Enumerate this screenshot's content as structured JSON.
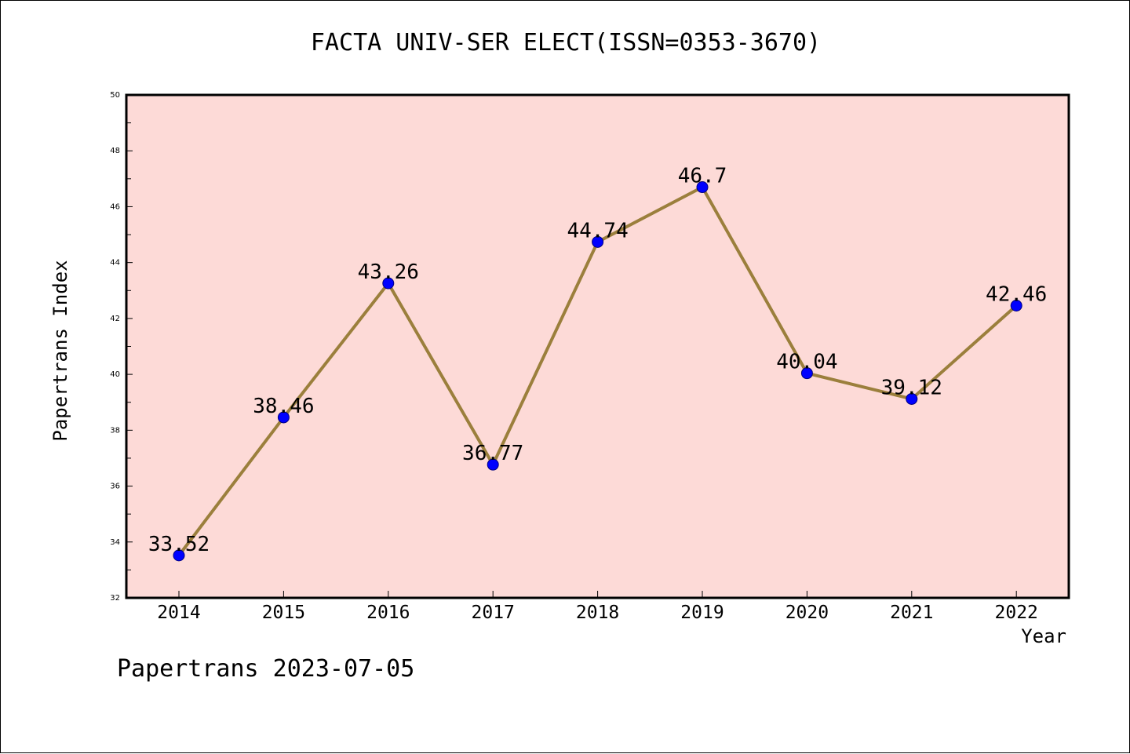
{
  "title": "FACTA UNIV-SER ELECT(ISSN=0353-3670)",
  "footer": "Papertrans 2023-07-05",
  "colors": {
    "plot_background": "#fddad7",
    "line": "#9b7f3c",
    "marker": "#0000ff",
    "marker_edge": "#000080"
  },
  "chart_data": {
    "type": "line",
    "title": "FACTA UNIV-SER ELECT(ISSN=0353-3670)",
    "xlabel": "Year",
    "ylabel": "Papertrans Index",
    "categories": [
      "2014",
      "2015",
      "2016",
      "2017",
      "2018",
      "2019",
      "2020",
      "2021",
      "2022"
    ],
    "values": [
      33.52,
      38.46,
      43.26,
      36.77,
      44.74,
      46.7,
      40.04,
      39.12,
      42.46
    ],
    "data_labels": [
      "33.52",
      "38.46",
      "43.26",
      "36.77",
      "44.74",
      "46.7",
      "40.04",
      "39.12",
      "42.46"
    ],
    "ylim": [
      32,
      50
    ],
    "yticks": [
      32,
      34,
      36,
      38,
      40,
      42,
      44,
      46,
      48,
      50
    ],
    "grid": false,
    "legend": "none"
  }
}
